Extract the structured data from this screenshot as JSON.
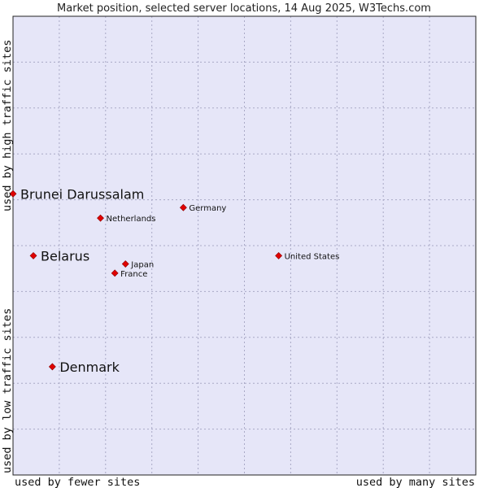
{
  "chart_data": {
    "type": "scatter",
    "title": "Market position, selected server locations, 14 Aug 2025, W3Techs.com",
    "xlabel_left": "used by fewer sites",
    "xlabel_right": "used by many sites",
    "ylabel_bottom": "used by low traffic sites",
    "ylabel_top": "used by high traffic sites",
    "xlim": [
      0,
      100
    ],
    "ylim": [
      0,
      100
    ],
    "grid": true,
    "colors": {
      "plot_background": "#e6e6f8",
      "grid": "#a9a9c6",
      "border": "#222222",
      "marker": "#e00000"
    },
    "points": [
      {
        "label": "Brunei Darussalam",
        "x": 0,
        "y": 61.3,
        "emphasis": true
      },
      {
        "label": "Belarus",
        "x": 4.4,
        "y": 47.8,
        "emphasis": true
      },
      {
        "label": "Denmark",
        "x": 8.5,
        "y": 23.6,
        "emphasis": true
      },
      {
        "label": "Germany",
        "x": 36.8,
        "y": 58.3,
        "emphasis": false
      },
      {
        "label": "Netherlands",
        "x": 18.9,
        "y": 56.0,
        "emphasis": false
      },
      {
        "label": "United States",
        "x": 57.4,
        "y": 47.8,
        "emphasis": false
      },
      {
        "label": "Japan",
        "x": 24.3,
        "y": 46.0,
        "emphasis": false
      },
      {
        "label": "France",
        "x": 22.0,
        "y": 44.0,
        "emphasis": false
      }
    ]
  }
}
